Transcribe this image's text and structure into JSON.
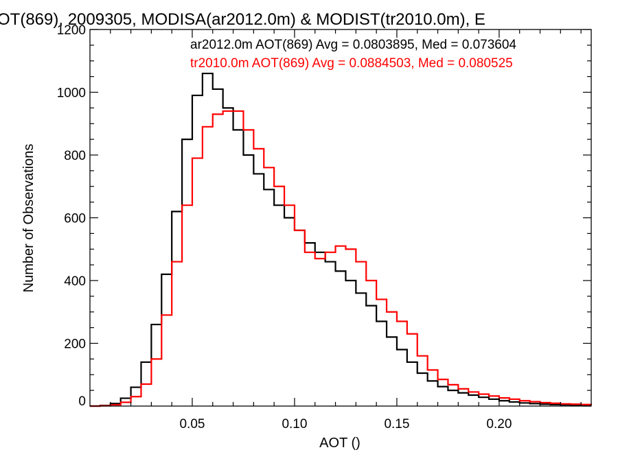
{
  "chart_data": {
    "type": "line",
    "title": "OT(869), 2009305, MODISA(ar2012.0m) & MODIST(tr2010.0m), E",
    "xlabel": "AOT ()",
    "ylabel": "Number of Observations",
    "xlim": [
      0.0,
      0.245
    ],
    "ylim": [
      0,
      1200
    ],
    "xticks": [
      0.05,
      0.1,
      0.15,
      0.2
    ],
    "xtick_labels": [
      "0.05",
      "0.10",
      "0.15",
      "0.20"
    ],
    "yticks": [
      0,
      200,
      400,
      600,
      800,
      1000,
      1200
    ],
    "ytick_labels": [
      "0",
      "200",
      "400",
      "600",
      "800",
      "1000",
      "1200"
    ],
    "grid": false,
    "legend_position": "top-right",
    "series": [
      {
        "name": "ar2012.0m",
        "label": "ar2012.0m AOT(869) Avg = 0.0803895, Med = 0.073604",
        "color": "#000000",
        "points": [
          [
            0.0,
            0
          ],
          [
            0.005,
            2
          ],
          [
            0.01,
            8
          ],
          [
            0.015,
            25
          ],
          [
            0.02,
            60
          ],
          [
            0.025,
            140
          ],
          [
            0.03,
            260
          ],
          [
            0.035,
            420
          ],
          [
            0.04,
            620
          ],
          [
            0.045,
            850
          ],
          [
            0.05,
            990
          ],
          [
            0.055,
            1060
          ],
          [
            0.06,
            1010
          ],
          [
            0.065,
            950
          ],
          [
            0.07,
            880
          ],
          [
            0.075,
            800
          ],
          [
            0.08,
            740
          ],
          [
            0.085,
            690
          ],
          [
            0.09,
            640
          ],
          [
            0.095,
            600
          ],
          [
            0.1,
            560
          ],
          [
            0.105,
            520
          ],
          [
            0.11,
            490
          ],
          [
            0.115,
            460
          ],
          [
            0.12,
            430
          ],
          [
            0.125,
            400
          ],
          [
            0.13,
            360
          ],
          [
            0.135,
            320
          ],
          [
            0.14,
            270
          ],
          [
            0.145,
            220
          ],
          [
            0.15,
            180
          ],
          [
            0.155,
            140
          ],
          [
            0.16,
            105
          ],
          [
            0.165,
            80
          ],
          [
            0.17,
            62
          ],
          [
            0.175,
            50
          ],
          [
            0.18,
            42
          ],
          [
            0.185,
            35
          ],
          [
            0.19,
            28
          ],
          [
            0.195,
            22
          ],
          [
            0.2,
            17
          ],
          [
            0.205,
            13
          ],
          [
            0.21,
            10
          ],
          [
            0.215,
            8
          ],
          [
            0.22,
            6
          ],
          [
            0.225,
            5
          ],
          [
            0.23,
            4
          ],
          [
            0.235,
            3
          ],
          [
            0.24,
            2
          ],
          [
            0.245,
            2
          ]
        ]
      },
      {
        "name": "tr2010.0m",
        "label": "tr2010.0m AOT(869) Avg = 0.0884503, Med = 0.080525",
        "color": "#ff0000",
        "points": [
          [
            0.0,
            0
          ],
          [
            0.005,
            1
          ],
          [
            0.01,
            4
          ],
          [
            0.015,
            12
          ],
          [
            0.02,
            30
          ],
          [
            0.025,
            70
          ],
          [
            0.03,
            150
          ],
          [
            0.035,
            290
          ],
          [
            0.04,
            460
          ],
          [
            0.045,
            640
          ],
          [
            0.05,
            790
          ],
          [
            0.055,
            890
          ],
          [
            0.06,
            930
          ],
          [
            0.065,
            940
          ],
          [
            0.07,
            940
          ],
          [
            0.075,
            880
          ],
          [
            0.08,
            820
          ],
          [
            0.085,
            760
          ],
          [
            0.09,
            700
          ],
          [
            0.095,
            640
          ],
          [
            0.1,
            560
          ],
          [
            0.105,
            490
          ],
          [
            0.11,
            470
          ],
          [
            0.115,
            490
          ],
          [
            0.12,
            510
          ],
          [
            0.125,
            500
          ],
          [
            0.13,
            460
          ],
          [
            0.135,
            400
          ],
          [
            0.14,
            340
          ],
          [
            0.145,
            300
          ],
          [
            0.15,
            270
          ],
          [
            0.155,
            230
          ],
          [
            0.16,
            160
          ],
          [
            0.165,
            115
          ],
          [
            0.17,
            85
          ],
          [
            0.175,
            68
          ],
          [
            0.18,
            55
          ],
          [
            0.185,
            45
          ],
          [
            0.19,
            38
          ],
          [
            0.195,
            32
          ],
          [
            0.2,
            26
          ],
          [
            0.205,
            22
          ],
          [
            0.21,
            17
          ],
          [
            0.215,
            14
          ],
          [
            0.22,
            11
          ],
          [
            0.225,
            9
          ],
          [
            0.23,
            7
          ],
          [
            0.235,
            6
          ],
          [
            0.24,
            5
          ],
          [
            0.245,
            4
          ]
        ]
      }
    ]
  }
}
